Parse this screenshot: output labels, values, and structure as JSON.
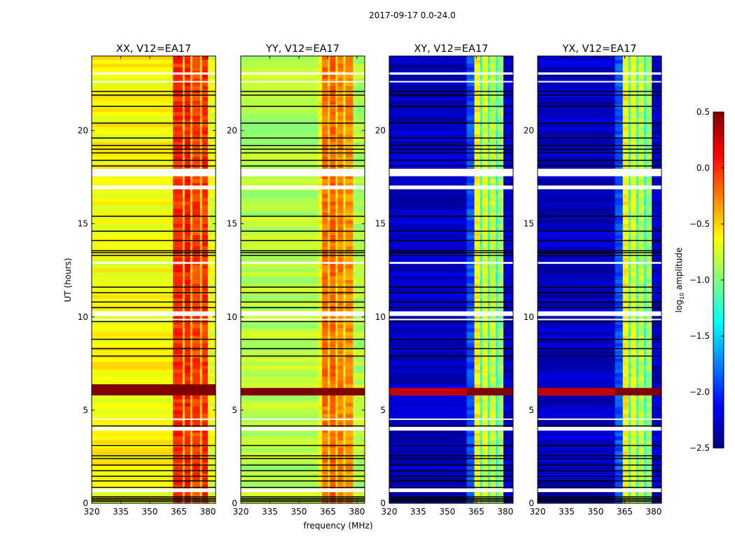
{
  "chart_data": {
    "type": "heatmap",
    "title": "2017-09-17 0.0-24.0",
    "xlabel": "frequency (MHz)",
    "ylabel": "UT (hours)",
    "xlim": [
      320,
      384
    ],
    "ylim": [
      0,
      24
    ],
    "xticks": [
      "320",
      "335",
      "350",
      "365",
      "380"
    ],
    "xtick_values": [
      320,
      335,
      350,
      365,
      380
    ],
    "yticks": [
      "0",
      "5",
      "10",
      "15",
      "20"
    ],
    "ytick_values": [
      0,
      5,
      10,
      15,
      20
    ],
    "colorbar": {
      "label_prefix": "log",
      "label_sub": "10",
      "label_suffix": " amplitude",
      "vmin": -2.5,
      "vmax": 0.5,
      "colormap": "jet",
      "ticks": [
        "−2.5",
        "−2.0",
        "−1.5",
        "−1.0",
        "−0.5",
        "0.0",
        "0.5"
      ],
      "tick_values": [
        -2.5,
        -2.0,
        -1.5,
        -1.0,
        -0.5,
        0.0,
        0.5
      ]
    },
    "flagged_white_ranges_hours": [
      [
        23.0,
        23.12
      ],
      [
        22.6,
        22.66
      ],
      [
        17.55,
        17.95
      ],
      [
        16.85,
        17.05
      ],
      [
        12.85,
        12.95
      ],
      [
        10.05,
        10.3
      ],
      [
        9.85,
        9.9
      ],
      [
        4.5,
        4.55
      ],
      [
        3.9,
        4.1
      ],
      [
        0.6,
        0.8
      ]
    ],
    "flagged_black_hours": [
      0.1,
      0.18,
      0.26,
      0.35,
      0.85,
      1.2,
      1.45,
      1.75,
      2.05,
      2.4,
      2.55,
      3.1,
      4.15,
      7.9,
      8.3,
      8.8,
      9.75,
      10.5,
      10.8,
      11.3,
      11.6,
      13.3,
      13.45,
      13.55,
      14.1,
      14.6,
      15.4,
      18.1,
      18.4,
      18.8,
      19.0,
      19.2,
      19.6,
      20.4,
      21.3,
      21.9,
      22.1
    ],
    "panels": [
      {
        "title": "XX, V12=EA17",
        "bands": [
          [
            320,
            362,
            -0.62
          ],
          [
            362,
            367,
            0.0
          ],
          [
            367,
            368,
            -0.5
          ],
          [
            368,
            371,
            0.05
          ],
          [
            371,
            372,
            -0.5
          ],
          [
            372,
            376,
            -0.05
          ],
          [
            376,
            377,
            -0.5
          ],
          [
            377,
            380,
            0.0
          ],
          [
            380,
            384,
            -0.7
          ]
        ],
        "burst": {
          "t0": 5.75,
          "t1": 6.3,
          "level": 0.5,
          "level_low": 0.5
        }
      },
      {
        "title": "YY, V12=EA17",
        "bands": [
          [
            320,
            360,
            -0.85
          ],
          [
            360,
            362,
            -0.65
          ],
          [
            362,
            365,
            -0.2
          ],
          [
            365,
            366,
            -0.55
          ],
          [
            366,
            369,
            -0.15
          ],
          [
            369,
            370,
            -0.55
          ],
          [
            370,
            373,
            -0.25
          ],
          [
            373,
            374,
            -0.6
          ],
          [
            374,
            378,
            -0.3
          ],
          [
            378,
            384,
            -0.85
          ]
        ],
        "burst": {
          "t0": 5.9,
          "t1": 6.15,
          "level": 0.5,
          "level_low": 0.5
        }
      },
      {
        "title": "XY, V12=EA17",
        "bands": [
          [
            320,
            360,
            -2.3
          ],
          [
            360,
            364,
            -1.9
          ],
          [
            364,
            367,
            -0.6
          ],
          [
            367,
            368,
            -1.3
          ],
          [
            368,
            371,
            -0.7
          ],
          [
            371,
            372,
            -1.3
          ],
          [
            372,
            375,
            -0.8
          ],
          [
            375,
            376,
            -1.3
          ],
          [
            376,
            379,
            -0.9
          ],
          [
            379,
            384,
            -2.3
          ]
        ],
        "burst": {
          "t0": 5.9,
          "t1": 6.2,
          "level": 0.5,
          "level_low": 0.3
        }
      },
      {
        "title": "YX, V12=EA17",
        "bands": [
          [
            320,
            360,
            -2.3
          ],
          [
            360,
            364,
            -1.9
          ],
          [
            364,
            367,
            -0.6
          ],
          [
            367,
            368,
            -1.3
          ],
          [
            368,
            371,
            -0.7
          ],
          [
            371,
            372,
            -1.3
          ],
          [
            372,
            375,
            -0.8
          ],
          [
            375,
            376,
            -1.3
          ],
          [
            376,
            379,
            -0.9
          ],
          [
            379,
            384,
            -2.3
          ]
        ],
        "burst": {
          "t0": 5.9,
          "t1": 6.2,
          "level": 0.5,
          "level_low": 0.3
        }
      }
    ]
  }
}
